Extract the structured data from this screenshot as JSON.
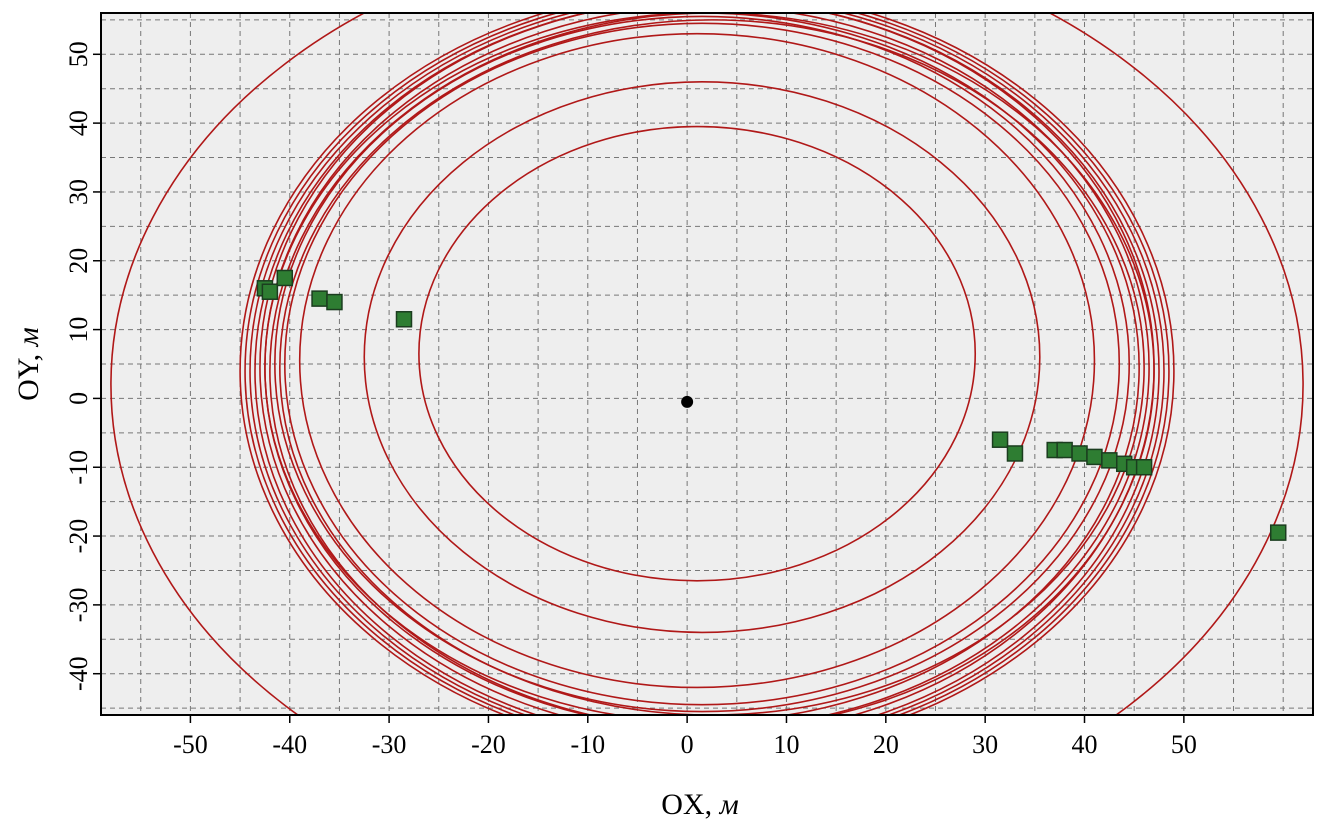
{
  "chart_data": {
    "type": "scatter",
    "title": "",
    "xlabel": "OX, м",
    "ylabel": "OY, м",
    "xlabel_main": "OX,",
    "xlabel_unit": "м",
    "ylabel_main": "OY,",
    "ylabel_unit": "м",
    "xlim": [
      -59,
      63
    ],
    "ylim": [
      -46,
      56
    ],
    "x_ticks": [
      -50,
      -40,
      -30,
      -20,
      -10,
      0,
      10,
      20,
      30,
      40,
      50
    ],
    "x_tick_labels": [
      "-50",
      "-40",
      "-30",
      "-20",
      "-10",
      "0",
      "10",
      "20",
      "30",
      "40",
      "50"
    ],
    "y_ticks": [
      -40,
      -30,
      -20,
      -10,
      0,
      10,
      20,
      30,
      40,
      50
    ],
    "y_tick_labels": [
      "-40",
      "-30",
      "-20",
      "-10",
      "0",
      "10",
      "20",
      "30",
      "40",
      "50"
    ],
    "grid": true,
    "grid_step_x": 5,
    "grid_step_y": 5,
    "legend": false,
    "colors": {
      "background": "#eeeeee",
      "trajectory": "#b01818",
      "marker_fill": "#2e7d32",
      "marker_edge": "#1b3d1f",
      "center": "#000000",
      "grid": "#777777"
    },
    "center_point": {
      "x": 0,
      "y": -0.5
    },
    "trajectory_curves": [
      {
        "cx": 1,
        "cy": 5.5,
        "rx": 40,
        "ry": 47.5
      },
      {
        "cx": 1.5,
        "cy": 5,
        "rx": 42,
        "ry": 49.5
      },
      {
        "cx": 1.5,
        "cy": 5,
        "rx": 43,
        "ry": 50.5
      },
      {
        "cx": 1.5,
        "cy": 4.5,
        "rx": 44,
        "ry": 51.5
      },
      {
        "cx": 2,
        "cy": 4.5,
        "rx": 44.5,
        "ry": 52.5
      },
      {
        "cx": 2,
        "cy": 4.5,
        "rx": 45,
        "ry": 53.5
      },
      {
        "cx": 2,
        "cy": 4,
        "rx": 45.5,
        "ry": 54
      },
      {
        "cx": 2,
        "cy": 4,
        "rx": 46,
        "ry": 54.5
      },
      {
        "cx": 2,
        "cy": 4,
        "rx": 46.5,
        "ry": 55
      },
      {
        "cx": 2,
        "cy": 4,
        "rx": 47,
        "ry": 55.5
      },
      {
        "cx": 2.5,
        "cy": 4,
        "rx": 44.5,
        "ry": 52
      },
      {
        "cx": 2.5,
        "cy": 4.5,
        "rx": 43.5,
        "ry": 50.5
      },
      {
        "cx": 1.5,
        "cy": 6,
        "rx": 34,
        "ry": 40
      },
      {
        "cx": 1,
        "cy": 6.5,
        "rx": 28,
        "ry": 33
      },
      {
        "cx": 2,
        "cy": 2,
        "rx": 60,
        "ry": 66
      }
    ],
    "markers": [
      {
        "x": -42.5,
        "y": 16
      },
      {
        "x": -42,
        "y": 15.5
      },
      {
        "x": -40.5,
        "y": 17.5
      },
      {
        "x": -37,
        "y": 14.5
      },
      {
        "x": -35.5,
        "y": 14
      },
      {
        "x": -28.5,
        "y": 11.5
      },
      {
        "x": 31.5,
        "y": -6
      },
      {
        "x": 33,
        "y": -8
      },
      {
        "x": 37,
        "y": -7.5
      },
      {
        "x": 38,
        "y": -7.5
      },
      {
        "x": 39.5,
        "y": -8
      },
      {
        "x": 41,
        "y": -8.5
      },
      {
        "x": 42.5,
        "y": -9
      },
      {
        "x": 44,
        "y": -9.5
      },
      {
        "x": 45,
        "y": -10
      },
      {
        "x": 46,
        "y": -10
      },
      {
        "x": 59.5,
        "y": -19.5
      }
    ]
  }
}
